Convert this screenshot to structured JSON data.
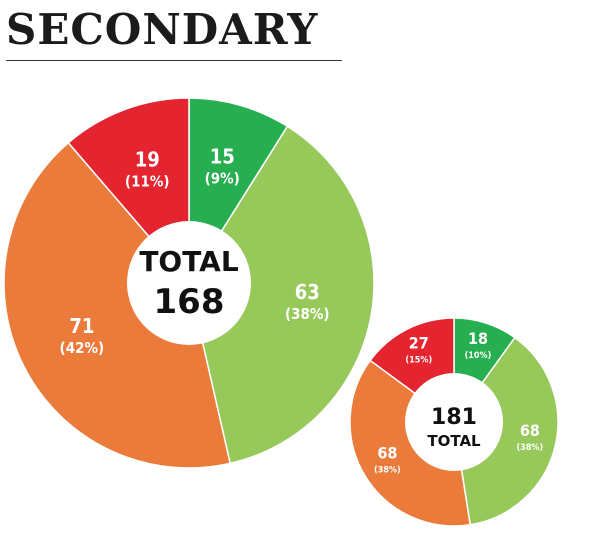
{
  "title": "SECONDARY",
  "colors": {
    "dark_green": "#27ae50",
    "light_green": "#96c85a",
    "orange": "#ea7b3a",
    "red": "#e4242f"
  },
  "chart_data": [
    {
      "type": "pie",
      "style": "donut",
      "center_label_top": "TOTAL",
      "center_label_bottom": "168",
      "total": 168,
      "slices": [
        {
          "value": 15,
          "percent_label": "(9%)",
          "color": "#27ae50"
        },
        {
          "value": 63,
          "percent_label": "(38%)",
          "color": "#96c85a"
        },
        {
          "value": 71,
          "percent_label": "(42%)",
          "color": "#ea7b3a"
        },
        {
          "value": 19,
          "percent_label": "(11%)",
          "color": "#e4242f"
        }
      ]
    },
    {
      "type": "pie",
      "style": "donut",
      "center_label_top": "181",
      "center_label_bottom": "TOTAL",
      "total": 181,
      "slices": [
        {
          "value": 18,
          "percent_label": "(10%)",
          "color": "#27ae50"
        },
        {
          "value": 68,
          "percent_label": "(38%)",
          "color": "#96c85a"
        },
        {
          "value": 68,
          "percent_label": "(38%)",
          "color": "#ea7b3a"
        },
        {
          "value": 27,
          "percent_label": "(15%)",
          "color": "#e4242f"
        }
      ]
    }
  ]
}
